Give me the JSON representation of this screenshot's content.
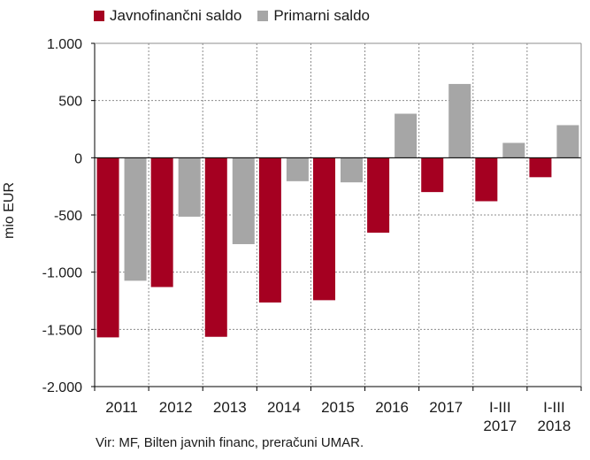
{
  "chart_data": {
    "type": "bar",
    "ylabel": "mio EUR",
    "ylim": [
      -2000,
      1000
    ],
    "yticks": [
      1000,
      500,
      0,
      -500,
      -1000,
      -1500,
      -2000
    ],
    "ytick_labels": [
      "1.000",
      "500",
      "0",
      "-500",
      "-1.000",
      "-1.500",
      "-2.000"
    ],
    "categories": [
      "2011",
      "2012",
      "2013",
      "2014",
      "2015",
      "2016",
      "2017",
      "I-III 2017",
      "I-III 2018"
    ],
    "category_lines": [
      [
        "2011"
      ],
      [
        "2012"
      ],
      [
        "2013"
      ],
      [
        "2014"
      ],
      [
        "2015"
      ],
      [
        "2016"
      ],
      [
        "2017"
      ],
      [
        "I-III",
        "2017"
      ],
      [
        "I-III",
        "2018"
      ]
    ],
    "series": [
      {
        "name": "Javnofinančni saldo",
        "color": "#a50021",
        "values": [
          -1570,
          -1130,
          -1565,
          -1265,
          -1245,
          -655,
          -300,
          -380,
          -170
        ]
      },
      {
        "name": "Primarni saldo",
        "color": "#a6a6a6",
        "values": [
          -1075,
          -515,
          -755,
          -205,
          -215,
          385,
          645,
          130,
          285
        ]
      }
    ],
    "grid": true,
    "legend_position": "top-left",
    "source": "Vir: MF, Bilten javnih financ, preračuni UMAR."
  }
}
